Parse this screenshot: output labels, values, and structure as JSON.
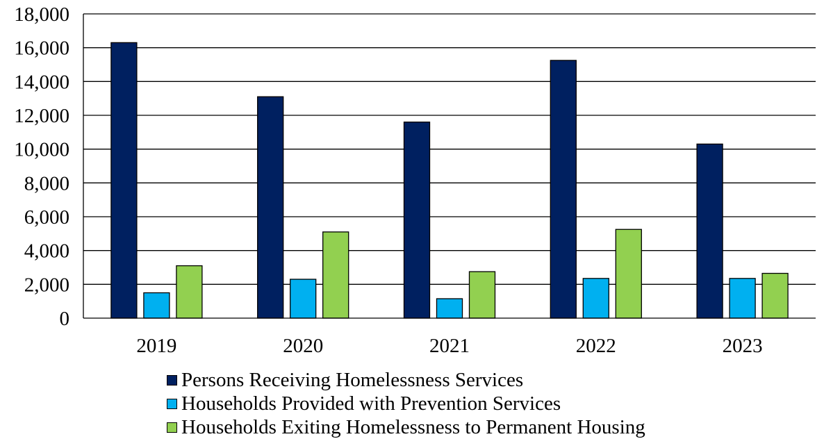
{
  "chart_data": {
    "type": "bar",
    "categories": [
      "2019",
      "2020",
      "2021",
      "2022",
      "2023"
    ],
    "series": [
      {
        "name": "Persons Receiving Homelessness Services",
        "color": "#002060",
        "values": [
          16300,
          13100,
          11600,
          15250,
          10300
        ]
      },
      {
        "name": "Households Provided with Prevention Services",
        "color": "#00B0F0",
        "values": [
          1500,
          2300,
          1150,
          2350,
          2350
        ]
      },
      {
        "name": "Households Exiting Homelessness to Permanent Housing",
        "color": "#92D050",
        "values": [
          3100,
          5100,
          2750,
          5250,
          2650
        ]
      }
    ],
    "ylim": [
      0,
      18000
    ],
    "yticks": [
      0,
      2000,
      4000,
      6000,
      8000,
      10000,
      12000,
      14000,
      16000,
      18000
    ],
    "ytick_labels": [
      "0",
      "2,000",
      "4,000",
      "6,000",
      "8,000",
      "10,000",
      "12,000",
      "14,000",
      "16,000",
      "18,000"
    ],
    "grid": true,
    "legend_position": "bottom",
    "title": "",
    "xlabel": "",
    "ylabel": ""
  }
}
